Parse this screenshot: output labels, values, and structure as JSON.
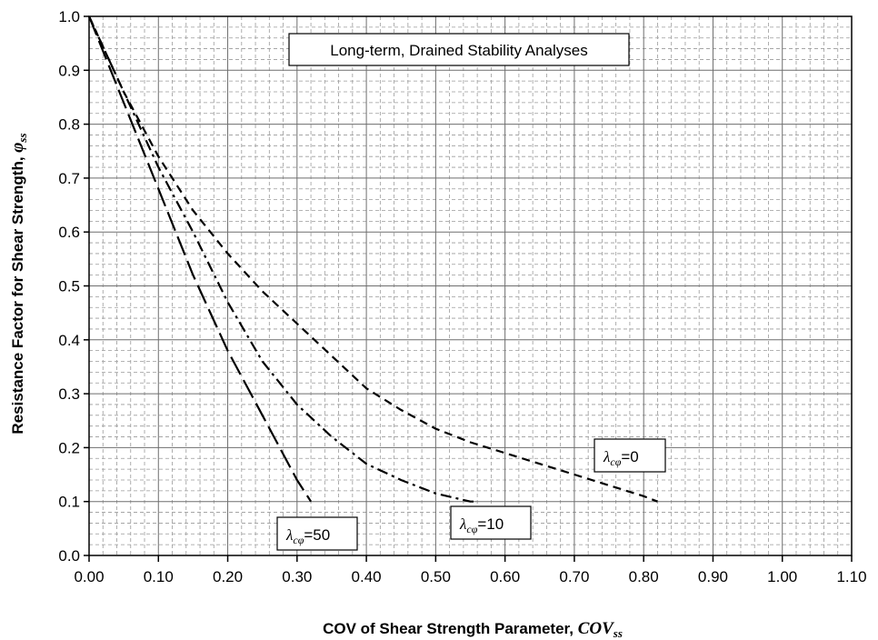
{
  "chart_data": {
    "type": "line",
    "title": "",
    "annotation": "Long-term, Drained Stability Analyses",
    "xlabel_prefix": "COV of Shear Strength Parameter, ",
    "xlabel_symbol": "COV",
    "xlabel_subscript": "ss",
    "ylabel_prefix": "Resistance Factor for Shear Strength, ",
    "ylabel_symbol": "φ",
    "ylabel_subscript": "ss",
    "xlim": [
      0.0,
      1.1
    ],
    "ylim": [
      0.0,
      1.0
    ],
    "x_ticks": [
      "0.00",
      "0.10",
      "0.20",
      "0.30",
      "0.40",
      "0.50",
      "0.60",
      "0.70",
      "0.80",
      "0.90",
      "1.00",
      "1.10"
    ],
    "y_ticks": [
      "0.0",
      "0.1",
      "0.2",
      "0.3",
      "0.4",
      "0.5",
      "0.6",
      "0.7",
      "0.8",
      "0.9",
      "1.0"
    ],
    "grid": true,
    "series": [
      {
        "name": "λcφ=0",
        "label_lambda": "λ",
        "label_sub": "cφ",
        "label_val": "=0",
        "style": "dashed",
        "x": [
          0.0,
          0.05,
          0.1,
          0.15,
          0.2,
          0.25,
          0.3,
          0.35,
          0.4,
          0.45,
          0.5,
          0.55,
          0.6,
          0.65,
          0.7,
          0.75,
          0.8,
          0.82
        ],
        "y": [
          1.0,
          0.86,
          0.74,
          0.64,
          0.56,
          0.49,
          0.43,
          0.37,
          0.31,
          0.27,
          0.235,
          0.21,
          0.19,
          0.17,
          0.15,
          0.13,
          0.11,
          0.1
        ]
      },
      {
        "name": "λcφ=10",
        "label_lambda": "λ",
        "label_sub": "cφ",
        "label_val": "=10",
        "style": "dashdot",
        "x": [
          0.0,
          0.05,
          0.1,
          0.15,
          0.2,
          0.25,
          0.3,
          0.35,
          0.4,
          0.45,
          0.5,
          0.55,
          0.56
        ],
        "y": [
          1.0,
          0.86,
          0.72,
          0.6,
          0.47,
          0.36,
          0.28,
          0.22,
          0.17,
          0.14,
          0.115,
          0.1,
          0.1
        ]
      },
      {
        "name": "λcφ=50",
        "label_lambda": "λ",
        "label_sub": "cφ",
        "label_val": "=50",
        "style": "longdash",
        "x": [
          0.0,
          0.05,
          0.1,
          0.15,
          0.2,
          0.25,
          0.3,
          0.32
        ],
        "y": [
          1.0,
          0.84,
          0.68,
          0.52,
          0.38,
          0.26,
          0.14,
          0.1
        ]
      }
    ]
  }
}
